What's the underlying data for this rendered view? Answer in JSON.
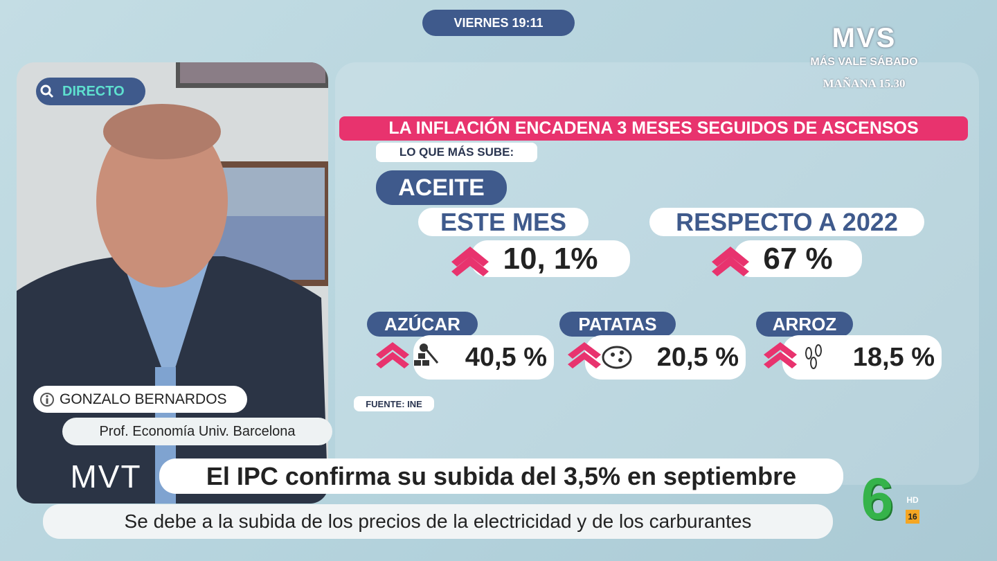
{
  "clock": "VIERNES 19:11",
  "logo": {
    "brand": "MVS",
    "name": "MÁS VALE SÁBADO",
    "schedule": "MAÑANA 15.30"
  },
  "live_tag": "DIRECTO",
  "infographic": {
    "title": "LA INFLACIÓN ENCADENA 3 MESES SEGUIDOS DE ASCENSOS",
    "subtitle": "LO QUE MÁS SUBE:",
    "main_item": "ACEITE",
    "main_stats": [
      {
        "label": "ESTE MES",
        "value": "10, 1%"
      },
      {
        "label": "RESPECTO A 2022",
        "value": "67 %"
      }
    ],
    "items": [
      {
        "label": "AZÚCAR",
        "value": "40,5 %"
      },
      {
        "label": "PATATAS",
        "value": "20,5 %"
      },
      {
        "label": "ARROZ",
        "value": "18,5 %"
      }
    ],
    "source": "FUENTE: INE"
  },
  "guest": {
    "name": "GONZALO BERNARDOS",
    "role": "Prof. Economía Univ. Barcelona"
  },
  "program_logo": "MVT",
  "headline": "El IPC confirma su subida del 3,5% en septiembre",
  "subheadline": "Se debe a la subida de los precios de la electricidad y de los carburantes",
  "channel": {
    "logo": "6",
    "quality": "HD",
    "rating": "16"
  }
}
